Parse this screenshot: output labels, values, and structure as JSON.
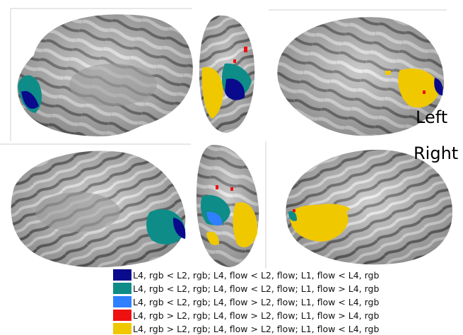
{
  "labels": {
    "left": "Left",
    "right": "Right"
  },
  "colors": {
    "dark_blue": "#0a0a8c",
    "teal": "#0e8c88",
    "light_blue": "#2f7fff",
    "red": "#ee1111",
    "gold": "#f0c800"
  },
  "legend": [
    {
      "text": "L4, rgb < L2, rgb; L4, flow < L2, flow; L1, flow < L4, rgb",
      "color": "#0a0a8c"
    },
    {
      "text": "L4, rgb < L2, rgb; L4, flow < L2, flow; L1, flow > L4, rgb",
      "color": "#0e8c88"
    },
    {
      "text": "L4, rgb < L2, rgb; L4, flow > L2, flow; L1, flow < L4, rgb",
      "color": "#2f7fff"
    },
    {
      "text": "L4, rgb > L2, rgb; L4, flow > L2, flow; L1, flow > L4, rgb",
      "color": "#ee1111"
    },
    {
      "text": "L4, rgb > L2, rgb; L4, flow > L2, flow; L1, flow < L4, rgb",
      "color": "#f0c800"
    }
  ]
}
